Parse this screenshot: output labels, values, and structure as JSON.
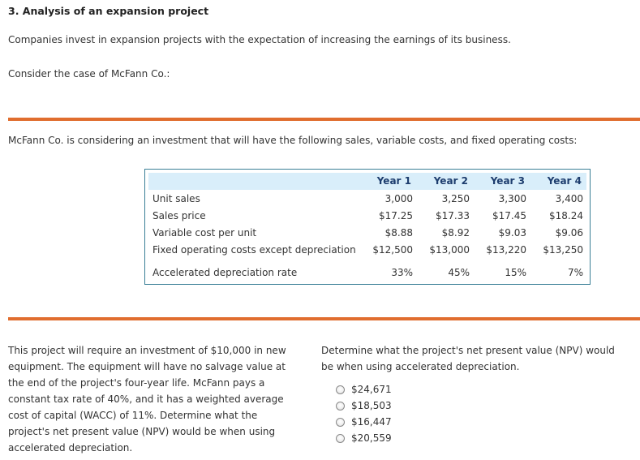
{
  "title": "3. Analysis of an expansion project",
  "intro": "Companies invest in expansion projects with the expectation of increasing the earnings of its business.",
  "consider": "Consider the case of McFann Co.:",
  "description": "McFann Co. is considering an investment that will have the following sales, variable costs, and fixed operating costs:",
  "table": {
    "headers": [
      "Year 1",
      "Year 2",
      "Year 3",
      "Year 4"
    ],
    "rows": [
      {
        "label": "Unit sales",
        "values": [
          "3,000",
          "3,250",
          "3,300",
          "3,400"
        ]
      },
      {
        "label": "Sales price",
        "values": [
          "$17.25",
          "$17.33",
          "$17.45",
          "$18.24"
        ]
      },
      {
        "label": "Variable cost per unit",
        "values": [
          "$8.88",
          "$8.92",
          "$9.03",
          "$9.06"
        ]
      },
      {
        "label": "Fixed operating costs except depreciation",
        "values": [
          "$12,500",
          "$13,000",
          "$13,220",
          "$13,250"
        ]
      },
      {
        "label": "Accelerated depreciation rate",
        "values": [
          "33%",
          "45%",
          "15%",
          "7%"
        ]
      }
    ]
  },
  "problem_text": "This project will require an investment of $10,000 in new equipment. The equipment will have no salvage value at the end of the project's four-year life. McFann pays a constant tax rate of 40%, and it has a weighted average cost of capital (WACC) of 11%. Determine what the project's net present value (NPV) would be when using accelerated depreciation.",
  "question": "Determine what the project's net present value (NPV) would be when using accelerated depreciation.",
  "options": [
    "$24,671",
    "$18,503",
    "$16,447",
    "$20,559"
  ]
}
